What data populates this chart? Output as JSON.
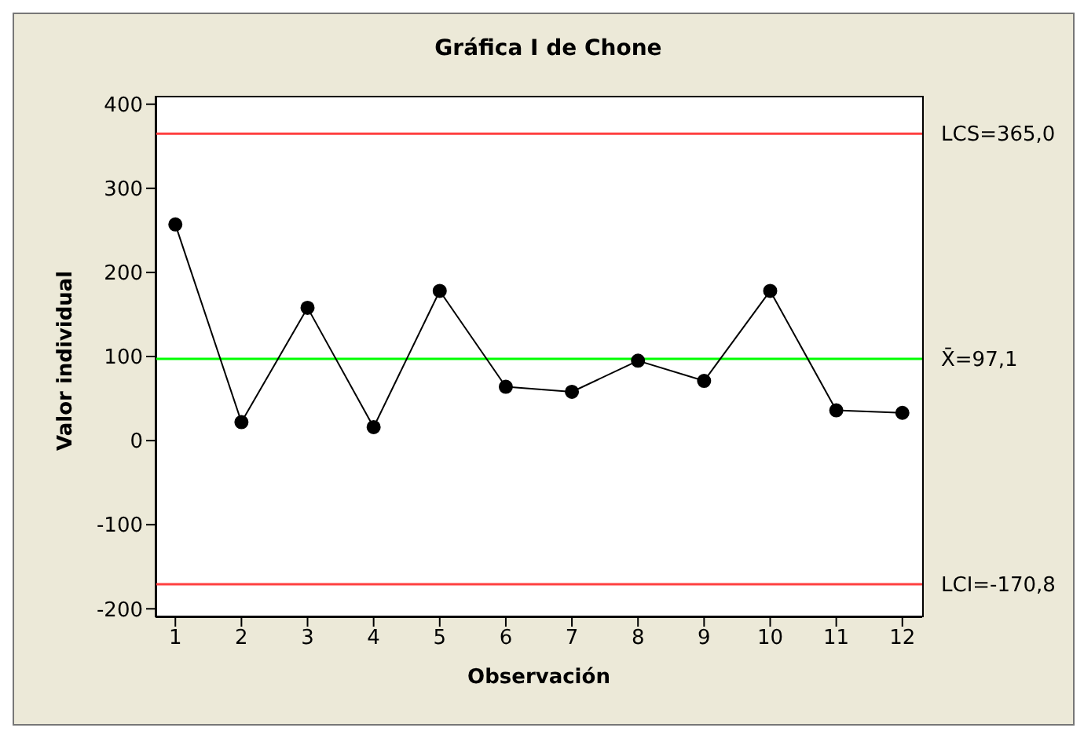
{
  "chart_data": {
    "type": "line",
    "title": "Gráfica I de Chone",
    "xlabel": "Observación",
    "ylabel": "Valor individual",
    "x": [
      1,
      2,
      3,
      4,
      5,
      6,
      7,
      8,
      9,
      10,
      11,
      12
    ],
    "series": [
      {
        "color": "#000000",
        "values": [
          257,
          22,
          158,
          16,
          178,
          64,
          58,
          95,
          71,
          178,
          36,
          33
        ]
      }
    ],
    "xlim": [
      0.7,
      12.3
    ],
    "xticks": [
      1,
      2,
      3,
      4,
      5,
      6,
      7,
      8,
      9,
      10,
      11,
      12
    ],
    "ylim": [
      -210,
      410
    ],
    "yticks": [
      -200,
      -100,
      0,
      100,
      200,
      300,
      400
    ],
    "marker": "circle",
    "line_style": "solid",
    "grid": false,
    "legend": false,
    "ref_lines": [
      {
        "axis": "y",
        "value": 365,
        "label": "LCS=365,0",
        "color": "#ff4040"
      },
      {
        "axis": "y",
        "value": 97.1,
        "label": "X̄=97,1",
        "color": "#00ff00"
      },
      {
        "axis": "y",
        "value": -170.8,
        "label": "LCI=-170,8",
        "color": "#ff4040"
      }
    ]
  }
}
